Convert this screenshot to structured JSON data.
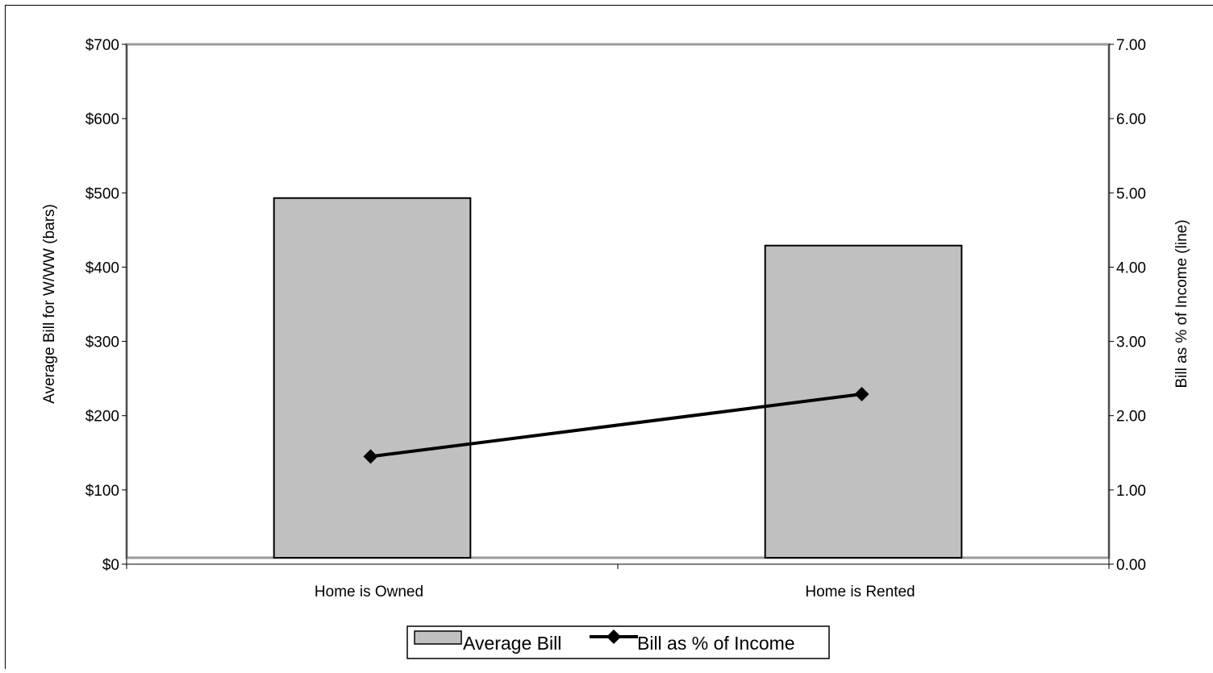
{
  "chart_data": {
    "type": "bar",
    "title": "",
    "categories": [
      "Home is Owned",
      "Home is Rented"
    ],
    "ylabel": "Average Bill for W/WW (bars)",
    "y2label": "Bill as % of Income (line)",
    "ylim": [
      0,
      700
    ],
    "y2lim": [
      0,
      7
    ],
    "yticks": [
      "$0",
      "$100",
      "$200",
      "$300",
      "$400",
      "$500",
      "$600",
      "$700"
    ],
    "y2ticks": [
      "0.00",
      "1.00",
      "2.00",
      "3.00",
      "4.00",
      "5.00",
      "6.00",
      "7.00"
    ],
    "series": [
      {
        "name": "Average Bill",
        "type": "bar",
        "axis": "left",
        "values": [
          493,
          429
        ],
        "color": "#c0c0c0"
      },
      {
        "name": "Bill as % of Income",
        "type": "line",
        "axis": "right",
        "values": [
          1.45,
          2.29
        ],
        "color": "#000000",
        "marker": "diamond"
      }
    ],
    "grid": false,
    "legend": "bottom-center"
  }
}
